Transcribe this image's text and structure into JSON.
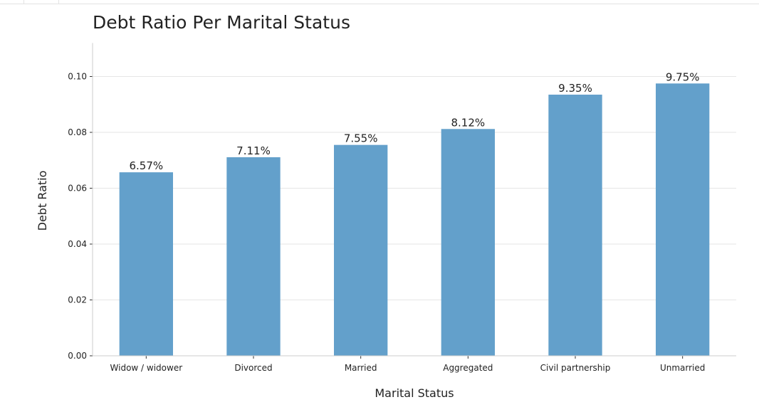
{
  "colors": {
    "bar": "#63a0cb",
    "grid": "#e6e6e6",
    "axis": "#cccccc"
  },
  "chart_data": {
    "type": "bar",
    "title": "Debt Ratio Per Marital Status",
    "xlabel": "Marital Status",
    "ylabel": "Debt Ratio",
    "categories": [
      "Widow / widower",
      "Divorced",
      "Married",
      "Aggregated",
      "Civil partnership",
      "Unmarried"
    ],
    "values": [
      0.0657,
      0.0711,
      0.0755,
      0.0812,
      0.0935,
      0.0975
    ],
    "data_labels": [
      "6.57%",
      "7.11%",
      "7.55%",
      "8.12%",
      "9.35%",
      "9.75%"
    ],
    "ylim": [
      0,
      0.112
    ],
    "yticks": [
      0.0,
      0.02,
      0.04,
      0.06,
      0.08,
      0.1
    ],
    "ytick_labels": [
      "0.00",
      "0.02",
      "0.04",
      "0.06",
      "0.08",
      "0.10"
    ],
    "grid": "horizontal",
    "legend": "none"
  }
}
